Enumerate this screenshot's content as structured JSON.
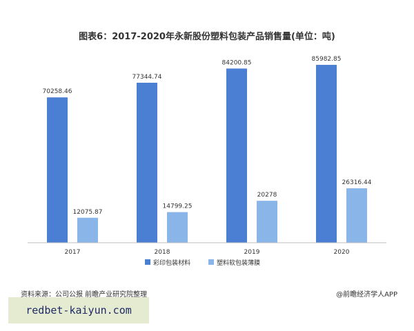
{
  "chart_data": {
    "type": "bar",
    "title": "图表6：2017-2020年永新股份塑料包装产品销售量(单位：吨)",
    "categories": [
      "2017",
      "2018",
      "2019",
      "2020"
    ],
    "series": [
      {
        "name": "彩印包装材料",
        "color": "#4a7fd4",
        "values": [
          70258.46,
          77344.74,
          84200.85,
          85982.85
        ],
        "labels": [
          "70258.46",
          "77344.74",
          "84200.85",
          "85982.85"
        ]
      },
      {
        "name": "塑料软包装薄膜",
        "color": "#8ab5e8",
        "values": [
          12075.87,
          14799.25,
          20278,
          26316.44
        ],
        "labels": [
          "12075.87",
          "14799.25",
          "20278",
          "26316.44"
        ]
      }
    ],
    "ylim": [
      0,
      100000
    ],
    "grid": false,
    "legend_position": "bottom",
    "xlabel": "",
    "ylabel": ""
  },
  "footer": {
    "source": "资料来源：公司公报 前瞻产业研究院整理",
    "credit": "@前瞻经济学人APP"
  },
  "banner": {
    "text": "redbet-kaiyun.com"
  }
}
